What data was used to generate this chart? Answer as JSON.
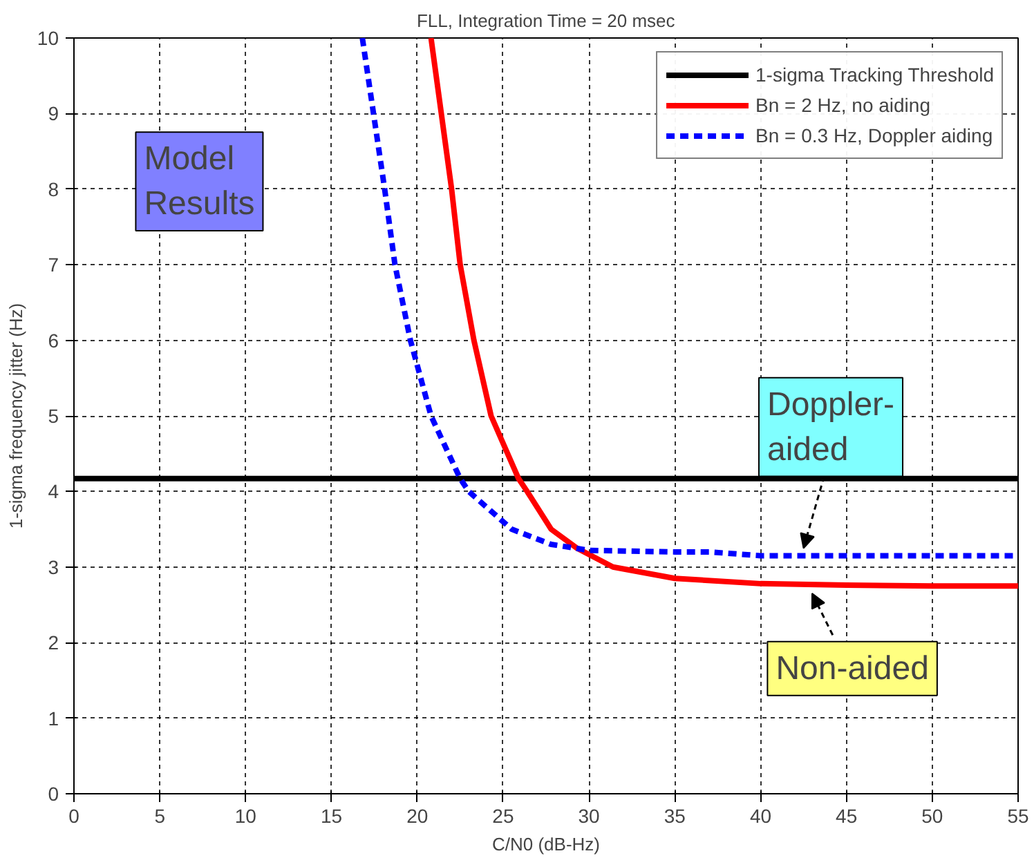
{
  "chart_data": {
    "type": "line",
    "title": "FLL, Integration Time = 20 msec",
    "xlabel": "C/N0 (dB-Hz)",
    "ylabel": "1-sigma frequency jitter (Hz)",
    "xlim": [
      0,
      55
    ],
    "ylim": [
      0,
      10
    ],
    "xticks": [
      0,
      5,
      10,
      15,
      20,
      25,
      30,
      35,
      40,
      45,
      50,
      55
    ],
    "yticks": [
      0,
      1,
      2,
      3,
      4,
      5,
      6,
      7,
      8,
      9,
      10
    ],
    "grid": true,
    "legend": "top right",
    "ref_lines": [
      {
        "axis": "y",
        "value": 4.17,
        "label": "1-sigma Tracking Threshold",
        "color": "#000000",
        "line_style": "solid"
      }
    ],
    "series": [
      {
        "name": "Bn = 2 Hz, no aiding",
        "color": "#ff0000",
        "line_style": "solid",
        "x": [
          20.8,
          22.0,
          22.5,
          23.3,
          24.3,
          25.9,
          26.4,
          27.8,
          29.3,
          31.4,
          35,
          40,
          45,
          50,
          55
        ],
        "values": [
          10,
          8,
          7,
          6,
          5,
          4.17,
          4,
          3.5,
          3.25,
          3.0,
          2.85,
          2.78,
          2.76,
          2.75,
          2.75
        ]
      },
      {
        "name": "Bn = 0.3 Hz, Doppler aiding",
        "color": "#0000ff",
        "line_style": "dashed",
        "x": [
          16.8,
          18.1,
          18.7,
          19.6,
          20.8,
          22.5,
          23.0,
          25.5,
          27.8,
          30,
          35,
          37,
          40,
          45,
          50,
          55
        ],
        "values": [
          10,
          8,
          7,
          6,
          5,
          4.17,
          4,
          3.5,
          3.3,
          3.22,
          3.2,
          3.2,
          3.15,
          3.15,
          3.15,
          3.15
        ]
      }
    ],
    "annotations": [
      "Model Results",
      {
        "text": "Doppler-aided",
        "x": 42.5,
        "y": 3.15
      },
      {
        "text": "Non-aided",
        "x": 43,
        "y": 2.75
      }
    ]
  }
}
